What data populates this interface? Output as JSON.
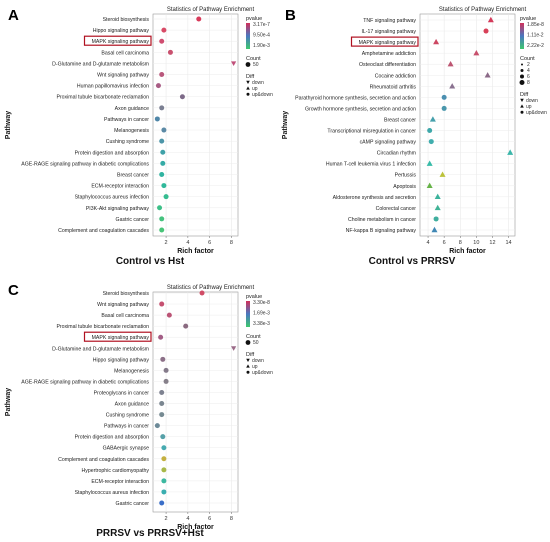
{
  "chart_data": [
    {
      "type": "scatter",
      "panel_label": "A",
      "title": "Statistics of Pathway Enrichment",
      "ylabel": "Pathway",
      "xlabel": "Rich factor",
      "comparison": "Control vs Hst",
      "x_ticks": [
        2,
        4,
        6,
        8
      ],
      "xlim": [
        0.8,
        8.6
      ],
      "highlight": "MAPK signaling pathway",
      "legend": {
        "pvalue_title": "pvalue",
        "pvalue_labels": [
          "3.17e-7",
          "9.50e-4",
          "1.90e-3"
        ],
        "count_title": "Count",
        "count_labels": [
          "50"
        ],
        "diff_title": "Diff",
        "diff_labels": [
          "down",
          "up",
          "up&down"
        ]
      },
      "points": [
        {
          "pathway": "Steroid biosynthesis",
          "x": 5.0,
          "diff": "up&down",
          "color": "#d83a5a"
        },
        {
          "pathway": "Hippo signaling pathway",
          "x": 1.8,
          "diff": "up&down",
          "color": "#d84a66"
        },
        {
          "pathway": "MAPK signaling pathway",
          "x": 1.6,
          "diff": "up&down",
          "color": "#cf4d70"
        },
        {
          "pathway": "Basal cell carcinoma",
          "x": 2.4,
          "diff": "up&down",
          "color": "#c9516f"
        },
        {
          "pathway": "D-Glutamine and D-glutamate metabolism",
          "x": 8.2,
          "diff": "down",
          "color": "#c0507a"
        },
        {
          "pathway": "Wnt signaling pathway",
          "x": 1.6,
          "diff": "up&down",
          "color": "#b9587c"
        },
        {
          "pathway": "Human papillomavirus infection",
          "x": 1.3,
          "diff": "up&down",
          "color": "#a85c84"
        },
        {
          "pathway": "Proximal tubule bicarbonate reclamation",
          "x": 3.5,
          "diff": "up&down",
          "color": "#7d6a88"
        },
        {
          "pathway": "Axon guidance",
          "x": 1.6,
          "diff": "up&down",
          "color": "#7b7f92"
        },
        {
          "pathway": "Pathways in cancer",
          "x": 1.2,
          "diff": "up&down",
          "color": "#4f86a8"
        },
        {
          "pathway": "Melanogenesis",
          "x": 1.8,
          "diff": "up&down",
          "color": "#5b8aa6"
        },
        {
          "pathway": "Cushing syndrome",
          "x": 1.6,
          "diff": "up&down",
          "color": "#4c95a8"
        },
        {
          "pathway": "Protein digestion and absorption",
          "x": 1.7,
          "diff": "up&down",
          "color": "#3fa1a8"
        },
        {
          "pathway": "AGE-RAGE signaling pathway in diabetic complications",
          "x": 1.7,
          "diff": "up&down",
          "color": "#35aba6"
        },
        {
          "pathway": "Breast cancer",
          "x": 1.6,
          "diff": "up&down",
          "color": "#2fb3a0"
        },
        {
          "pathway": "ECM-receptor interaction",
          "x": 1.8,
          "diff": "up&down",
          "color": "#2fb89a"
        },
        {
          "pathway": "Staphylococcus aureus infection",
          "x": 2.0,
          "diff": "up&down",
          "color": "#36bc90"
        },
        {
          "pathway": "PI3K-Akt signaling pathway",
          "x": 1.4,
          "diff": "up&down",
          "color": "#3dc088"
        },
        {
          "pathway": "Gastric cancer",
          "x": 1.6,
          "diff": "up&down",
          "color": "#45c27e"
        },
        {
          "pathway": "Complement and coagulation cascades",
          "x": 1.6,
          "diff": "up&down",
          "color": "#48c478"
        }
      ]
    },
    {
      "type": "scatter",
      "panel_label": "B",
      "title": "Statistics of Pathway Enrichment",
      "ylabel": "Pathway",
      "xlabel": "Rich factor",
      "comparison": "Control vs PRRSV",
      "x_ticks": [
        4,
        6,
        8,
        10,
        12,
        14
      ],
      "xlim": [
        3.0,
        14.8
      ],
      "highlight": "MAPK signaling pathway",
      "legend": {
        "pvalue_title": "pvalue",
        "pvalue_labels": [
          "1.85e-8",
          "1.11e-2",
          "2.22e-2"
        ],
        "count_title": "Count",
        "count_labels": [
          "2",
          "4",
          "6",
          "8"
        ],
        "diff_title": "Diff",
        "diff_labels": [
          "down",
          "up",
          "up&down"
        ]
      },
      "points": [
        {
          "pathway": "TNF signaling pathway",
          "x": 11.8,
          "diff": "up",
          "color": "#d43a5a"
        },
        {
          "pathway": "IL-17 signaling pathway",
          "x": 11.2,
          "diff": "up&down",
          "color": "#d84058"
        },
        {
          "pathway": "MAPK signaling pathway",
          "x": 5.0,
          "diff": "up",
          "color": "#cc4762"
        },
        {
          "pathway": "Amphetamine addiction",
          "x": 10.0,
          "diff": "up",
          "color": "#c7506c"
        },
        {
          "pathway": "Osteoclast differentiation",
          "x": 6.8,
          "diff": "up",
          "color": "#bd5672"
        },
        {
          "pathway": "Cocaine addiction",
          "x": 11.4,
          "diff": "up",
          "color": "#8b6a88"
        },
        {
          "pathway": "Rheumatoid arthritis",
          "x": 7.0,
          "diff": "up",
          "color": "#8a7290"
        },
        {
          "pathway": "Parathyroid hormone synthesis, secretion and action",
          "x": 6.0,
          "diff": "up&down",
          "color": "#4b8fb0"
        },
        {
          "pathway": "Growth hormone synthesis, secretion and action",
          "x": 6.0,
          "diff": "up&down",
          "color": "#4a97ac"
        },
        {
          "pathway": "Breast cancer",
          "x": 4.6,
          "diff": "up",
          "color": "#46a0ac"
        },
        {
          "pathway": "Transcriptional misregulation in cancer",
          "x": 4.2,
          "diff": "up&down",
          "color": "#3ea8aa"
        },
        {
          "pathway": "cAMP signaling pathway",
          "x": 4.4,
          "diff": "up&down",
          "color": "#40aeae"
        },
        {
          "pathway": "Circadian rhythm",
          "x": 14.2,
          "diff": "up",
          "color": "#3bb6aa"
        },
        {
          "pathway": "Human T-cell leukemia virus 1 infection",
          "x": 4.2,
          "diff": "up",
          "color": "#37bba8"
        },
        {
          "pathway": "Pertussis",
          "x": 5.8,
          "diff": "up",
          "color": "#bcc23a"
        },
        {
          "pathway": "Apoptosis",
          "x": 4.2,
          "diff": "up",
          "color": "#67b348"
        },
        {
          "pathway": "Aldosterone synthesis and secretion",
          "x": 5.2,
          "diff": "up",
          "color": "#3cb39c"
        },
        {
          "pathway": "Colorectal cancer",
          "x": 5.2,
          "diff": "up",
          "color": "#40b396"
        },
        {
          "pathway": "Choline metabolism in cancer",
          "x": 5.0,
          "diff": "up&down",
          "color": "#3fae9e"
        },
        {
          "pathway": "NF-kappa B signaling pathway",
          "x": 4.8,
          "diff": "up",
          "color": "#3f87b4"
        }
      ]
    },
    {
      "type": "scatter",
      "panel_label": "C",
      "title": "Statistics of Pathway Enrichment",
      "ylabel": "Pathway",
      "xlabel": "Rich factor",
      "comparison": "PRRSV vs PRRSV+Hst",
      "x_ticks": [
        2,
        4,
        6,
        8
      ],
      "xlim": [
        0.8,
        8.6
      ],
      "highlight": "MAPK signaling pathway",
      "legend": {
        "pvalue_title": "pvalue",
        "pvalue_labels": [
          "3.30e-8",
          "1.69e-3",
          "3.38e-3"
        ],
        "count_title": "Count",
        "count_labels": [
          "50"
        ],
        "diff_title": "Diff",
        "diff_labels": [
          "down",
          "up",
          "up&down"
        ]
      },
      "points": [
        {
          "pathway": "Steroid biosynthesis",
          "x": 5.3,
          "diff": "up&down",
          "color": "#d04c66"
        },
        {
          "pathway": "Wnt signaling pathway",
          "x": 1.6,
          "diff": "up&down",
          "color": "#c55070"
        },
        {
          "pathway": "Basal cell carcinoma",
          "x": 2.3,
          "diff": "up&down",
          "color": "#bb5476"
        },
        {
          "pathway": "Proximal tubule bicarbonate reclamation",
          "x": 3.8,
          "diff": "up&down",
          "color": "#8a6a80"
        },
        {
          "pathway": "MAPK signaling pathway",
          "x": 1.5,
          "diff": "up&down",
          "color": "#a35e86"
        },
        {
          "pathway": "D-Glutamine and D-glutamate metabolism",
          "x": 8.2,
          "diff": "down",
          "color": "#9b6a88"
        },
        {
          "pathway": "Hippo signaling pathway",
          "x": 1.7,
          "diff": "up&down",
          "color": "#8c7088"
        },
        {
          "pathway": "Melanogenesis",
          "x": 2.0,
          "diff": "up&down",
          "color": "#847a8a"
        },
        {
          "pathway": "AGE-RAGE signaling pathway in diabetic complications",
          "x": 2.0,
          "diff": "up&down",
          "color": "#86808a"
        },
        {
          "pathway": "Proteoglycans in cancer",
          "x": 1.6,
          "diff": "up&down",
          "color": "#7e8290"
        },
        {
          "pathway": "Axon guidance",
          "x": 1.6,
          "diff": "up&down",
          "color": "#7a8690"
        },
        {
          "pathway": "Cushing syndrome",
          "x": 1.6,
          "diff": "up&down",
          "color": "#768a92"
        },
        {
          "pathway": "Pathways in cancer",
          "x": 1.2,
          "diff": "up&down",
          "color": "#6d8a98"
        },
        {
          "pathway": "Protein digestion and absorption",
          "x": 1.7,
          "diff": "up&down",
          "color": "#56a0a8"
        },
        {
          "pathway": "GABAergic synapse",
          "x": 1.8,
          "diff": "up&down",
          "color": "#46aab0"
        },
        {
          "pathway": "Complement and coagulation cascades",
          "x": 1.8,
          "diff": "up&down",
          "color": "#c4b040"
        },
        {
          "pathway": "Hypertrophic cardiomyopathy",
          "x": 1.8,
          "diff": "up&down",
          "color": "#a8b848"
        },
        {
          "pathway": "ECM-receptor interaction",
          "x": 1.8,
          "diff": "up&down",
          "color": "#3cb8a0"
        },
        {
          "pathway": "Staphylococcus aureus infection",
          "x": 1.8,
          "diff": "up&down",
          "color": "#3aaeb0"
        },
        {
          "pathway": "Gastric cancer",
          "x": 1.6,
          "diff": "up&down",
          "color": "#3a6ec8"
        }
      ]
    }
  ]
}
